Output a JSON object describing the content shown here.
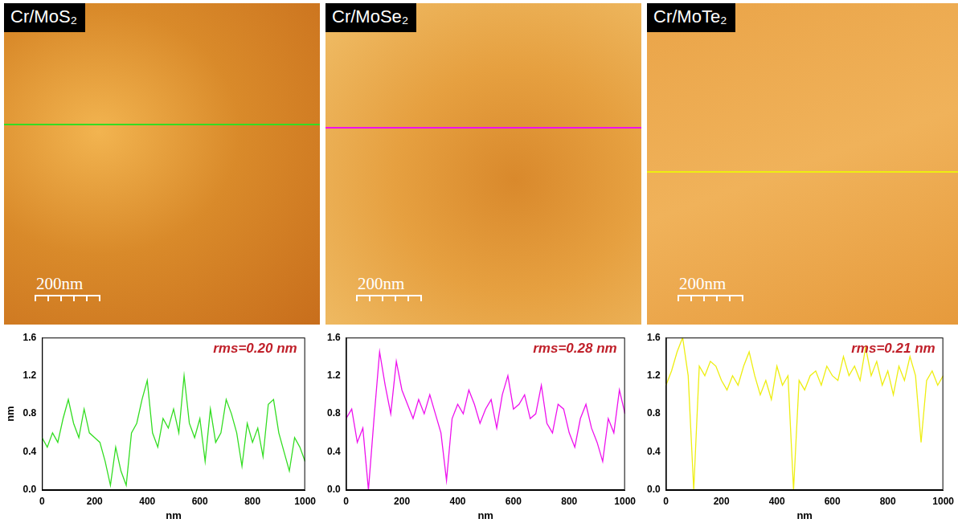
{
  "images": [
    {
      "title": "Cr/MoS₂",
      "scale_bar": "200nm"
    },
    {
      "title": "Cr/MoSe₂",
      "scale_bar": "200nm"
    },
    {
      "title": "Cr/MoTe₂",
      "scale_bar": "200nm"
    }
  ],
  "chart_data": [
    {
      "type": "line",
      "xlabel": "nm",
      "ylabel": "nm",
      "annotation": "rms=0.20 nm",
      "xlim": [
        0,
        1000
      ],
      "xticks": [
        0,
        200,
        400,
        600,
        800,
        1000
      ],
      "ylim": [
        0,
        1.6
      ],
      "yticks": [
        {
          "value": 0,
          "label": "0.0"
        },
        {
          "value": 0.4,
          "label": "0.4"
        },
        {
          "value": 0.8,
          "label": "0.8"
        },
        {
          "value": 1.2,
          "label": "1.2"
        },
        {
          "value": 1.6,
          "label": "1.6"
        }
      ],
      "grid": false,
      "x": [
        0,
        20,
        40,
        60,
        80,
        100,
        120,
        140,
        160,
        180,
        200,
        220,
        240,
        260,
        280,
        300,
        320,
        340,
        360,
        380,
        400,
        420,
        440,
        460,
        480,
        500,
        520,
        540,
        560,
        580,
        600,
        620,
        640,
        660,
        680,
        700,
        720,
        740,
        760,
        780,
        800,
        820,
        840,
        860,
        880,
        900,
        920,
        940,
        960,
        980,
        1000
      ],
      "series": [
        {
          "color": "#33dd22",
          "values": [
            0.55,
            0.45,
            0.6,
            0.5,
            0.75,
            0.95,
            0.7,
            0.55,
            0.85,
            0.6,
            0.55,
            0.5,
            0.3,
            0.05,
            0.45,
            0.2,
            0.05,
            0.6,
            0.7,
            0.95,
            1.15,
            0.6,
            0.45,
            0.75,
            0.65,
            0.85,
            0.6,
            1.2,
            0.7,
            0.55,
            0.75,
            0.3,
            0.85,
            0.5,
            0.6,
            0.95,
            0.8,
            0.6,
            0.25,
            0.7,
            0.5,
            0.65,
            0.35,
            0.9,
            0.95,
            0.6,
            0.4,
            0.2,
            0.55,
            0.45,
            0.3
          ]
        }
      ]
    },
    {
      "type": "line",
      "xlabel": "nm",
      "annotation": "rms=0.28 nm",
      "xlim": [
        0,
        1000
      ],
      "xticks": [
        0,
        200,
        400,
        600,
        800,
        1000
      ],
      "ylim": [
        0,
        1.6
      ],
      "yticks": [
        {
          "value": 0,
          "label": "0.0"
        },
        {
          "value": 0.4,
          "label": "0.4"
        },
        {
          "value": 0.8,
          "label": "0.8"
        },
        {
          "value": 1.2,
          "label": "1.2"
        },
        {
          "value": 1.6,
          "label": "1.6"
        }
      ],
      "grid": false,
      "x": [
        0,
        20,
        40,
        60,
        80,
        100,
        120,
        140,
        160,
        180,
        200,
        220,
        240,
        260,
        280,
        300,
        320,
        340,
        360,
        380,
        400,
        420,
        440,
        460,
        480,
        500,
        520,
        540,
        560,
        580,
        600,
        620,
        640,
        660,
        680,
        700,
        720,
        740,
        760,
        780,
        800,
        820,
        840,
        860,
        880,
        900,
        920,
        940,
        960,
        980,
        1000
      ],
      "series": [
        {
          "color": "#ee11ee",
          "values": [
            0.75,
            0.85,
            0.5,
            0.65,
            0.0,
            0.75,
            1.45,
            1.1,
            0.8,
            1.35,
            1.05,
            0.9,
            0.75,
            0.95,
            0.8,
            1.0,
            0.8,
            0.6,
            0.1,
            0.75,
            0.9,
            0.8,
            1.05,
            0.9,
            0.7,
            0.85,
            0.95,
            0.65,
            1.0,
            1.2,
            0.85,
            0.9,
            1.0,
            0.75,
            0.8,
            1.1,
            0.7,
            0.6,
            0.9,
            0.85,
            0.6,
            0.45,
            0.75,
            0.9,
            0.65,
            0.5,
            0.3,
            0.75,
            0.6,
            1.05,
            0.8
          ]
        }
      ]
    },
    {
      "type": "line",
      "xlabel": "nm",
      "annotation": "rms=0.21 nm",
      "xlim": [
        0,
        1000
      ],
      "xticks": [
        0,
        200,
        400,
        600,
        800,
        1000
      ],
      "ylim": [
        0,
        1.6
      ],
      "yticks": [
        {
          "value": 0,
          "label": "0.0"
        },
        {
          "value": 0.4,
          "label": "0.4"
        },
        {
          "value": 0.8,
          "label": "0.8"
        },
        {
          "value": 1.2,
          "label": "1.2"
        },
        {
          "value": 1.6,
          "label": "1.6"
        }
      ],
      "grid": false,
      "x": [
        0,
        20,
        40,
        60,
        80,
        100,
        120,
        140,
        160,
        180,
        200,
        220,
        240,
        260,
        280,
        300,
        320,
        340,
        360,
        380,
        400,
        420,
        440,
        460,
        480,
        500,
        520,
        540,
        560,
        580,
        600,
        620,
        640,
        660,
        680,
        700,
        720,
        740,
        760,
        780,
        800,
        820,
        840,
        860,
        880,
        900,
        920,
        940,
        960,
        980,
        1000
      ],
      "series": [
        {
          "color": "#eeee11",
          "values": [
            1.1,
            1.25,
            1.45,
            1.6,
            1.2,
            0.0,
            1.3,
            1.2,
            1.35,
            1.3,
            1.15,
            1.05,
            1.2,
            1.1,
            1.3,
            1.45,
            1.2,
            1.0,
            1.15,
            0.95,
            1.3,
            1.1,
            1.2,
            0.0,
            1.15,
            1.05,
            1.2,
            1.25,
            1.1,
            1.3,
            1.2,
            1.15,
            1.4,
            1.2,
            1.3,
            1.15,
            1.5,
            1.2,
            1.35,
            1.1,
            1.25,
            1.0,
            1.3,
            1.15,
            1.4,
            1.2,
            0.5,
            1.15,
            1.25,
            1.1,
            1.2
          ]
        }
      ]
    }
  ]
}
